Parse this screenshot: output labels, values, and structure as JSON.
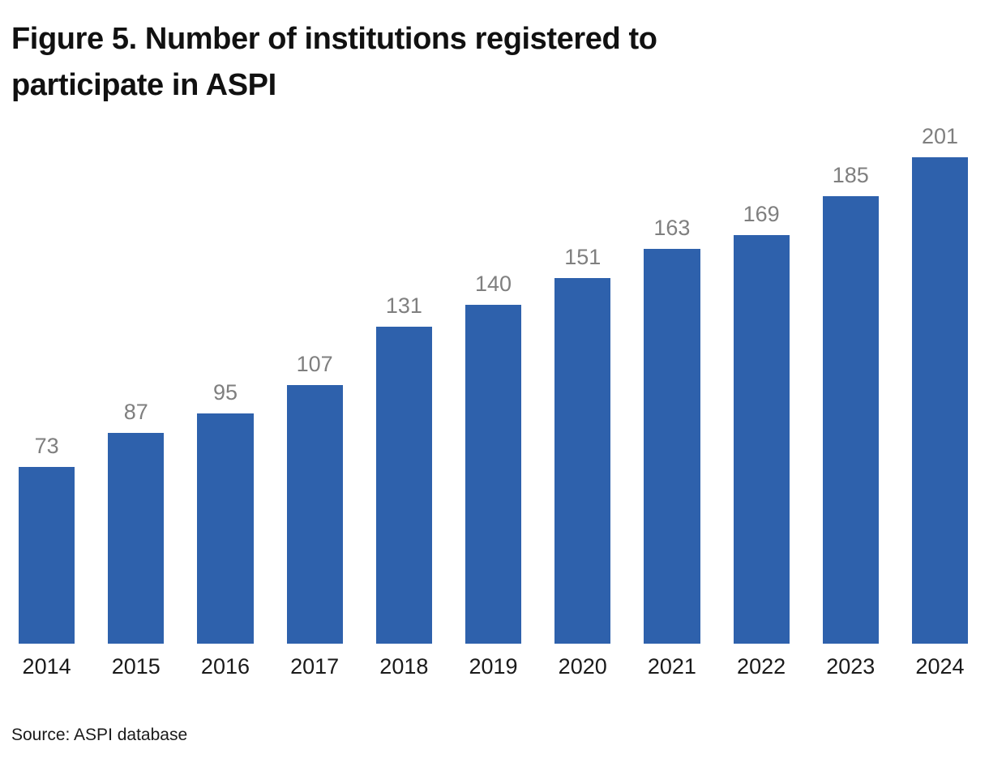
{
  "header": {
    "title": "Figure 5. Number of institutions registered to participate in ASPI",
    "title_line1": "Figure 5. Number of institutions registered to",
    "title_line2": "participate in ASPI"
  },
  "chart_data": {
    "type": "bar",
    "title": "Figure 5. Number of institutions registered to participate in ASPI",
    "categories": [
      "2014",
      "2015",
      "2016",
      "2017",
      "2018",
      "2019",
      "2020",
      "2021",
      "2022",
      "2023",
      "2024"
    ],
    "values": [
      73,
      87,
      95,
      107,
      131,
      140,
      151,
      163,
      169,
      185,
      201
    ],
    "xlabel": "",
    "ylabel": "",
    "ylim": [
      0,
      201
    ],
    "grid": false,
    "legend": false,
    "data_labels_shown": true,
    "axis_line_shown": false,
    "colors": {
      "bar": "#2e61ac",
      "value_label": "#7f7f7f",
      "category_label": "#1a1a1a",
      "title": "#111111",
      "background": "#ffffff"
    }
  },
  "footer": {
    "source": "Source: ASPI database"
  }
}
